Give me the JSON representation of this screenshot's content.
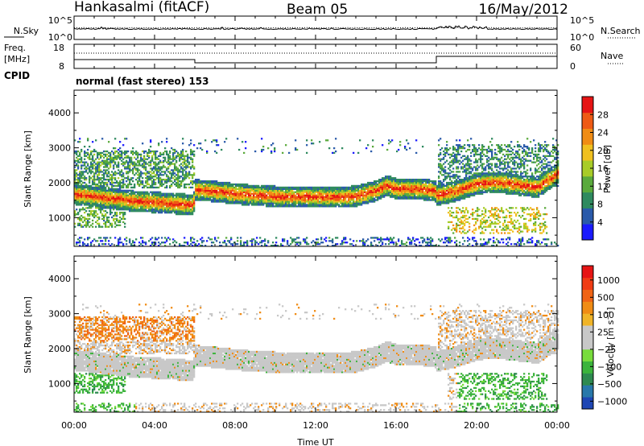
{
  "header": {
    "radar": "Hankasalmi (fitACF)",
    "beam": "Beam 05",
    "date": "16/May/2012"
  },
  "side_labels": {
    "nsky": "N.Sky",
    "nsearch": "N.Search",
    "freq": "Freq.",
    "freq_unit": "[MHz]",
    "nave": "Nave",
    "cpid": "CPID",
    "noise_hi": "10^5",
    "noise_lo": "10^0",
    "freq_hi": "18",
    "freq_lo": "8",
    "nave_hi": "60",
    "nave_lo": "0"
  },
  "cpid_text": "normal (fast stereo) 153",
  "chart_data": [
    {
      "type": "heatmap",
      "title": "Power",
      "xlabel": "Time UT",
      "ylabel": "Slant Range [km]",
      "xlim": [
        "00:00",
        "24:00"
      ],
      "ylim": [
        180,
        4650
      ],
      "x_ticks": [
        "00:00",
        "04:00",
        "08:00",
        "12:00",
        "16:00",
        "20:00",
        "00:00"
      ],
      "y_ticks": [
        1000,
        2000,
        3000,
        4000
      ],
      "colorbar": {
        "label": "Power [dB]",
        "ticks": [
          4,
          8,
          12,
          16,
          20,
          24,
          28
        ],
        "range": [
          0,
          32
        ],
        "colors": [
          "#1a1aff",
          "#2a5aaa",
          "#2f8a5f",
          "#5aaa3c",
          "#a8cc28",
          "#f0c020",
          "#f08c14",
          "#ee5a14",
          "#e61414"
        ]
      },
      "echo_band_center_km": [
        [
          0,
          1650
        ],
        [
          1,
          1580
        ],
        [
          2,
          1520
        ],
        [
          3,
          1450
        ],
        [
          4,
          1420
        ],
        [
          5,
          1380
        ],
        [
          5.9,
          1350
        ],
        [
          6,
          1780
        ],
        [
          7,
          1730
        ],
        [
          8,
          1660
        ],
        [
          9,
          1620
        ],
        [
          10,
          1590
        ],
        [
          11,
          1580
        ],
        [
          12,
          1570
        ],
        [
          13,
          1560
        ],
        [
          14,
          1600
        ],
        [
          15,
          1750
        ],
        [
          15.5,
          1900
        ],
        [
          16,
          1800
        ],
        [
          17,
          1800
        ],
        [
          17.9,
          1760
        ],
        [
          18,
          1620
        ],
        [
          19,
          1750
        ],
        [
          20,
          1950
        ],
        [
          21,
          2000
        ],
        [
          22,
          1920
        ],
        [
          23,
          1850
        ],
        [
          24,
          2250
        ]
      ]
    },
    {
      "type": "heatmap",
      "title": "Velocity",
      "xlabel": "Time UT",
      "ylabel": "Slant Range [km]",
      "xlim": [
        "00:00",
        "24:00"
      ],
      "ylim": [
        180,
        4650
      ],
      "x_ticks": [
        "00:00",
        "04:00",
        "08:00",
        "12:00",
        "16:00",
        "20:00",
        "00:00"
      ],
      "y_ticks": [
        1000,
        2000,
        3000,
        4000
      ],
      "colorbar": {
        "label": "Velocity [m s^-1]",
        "ticks": [
          "1000",
          "500",
          "100",
          "25",
          "−25",
          "−100",
          "−500",
          "−1000"
        ],
        "colors": [
          "#1e46b4",
          "#2878aa",
          "#2e8a50",
          "#3cb43c",
          "#78dc3c",
          "#c8c8c8",
          "#c8c8c8",
          "#f0b428",
          "#f08c14",
          "#f06414",
          "#f03c14",
          "#e61414"
        ]
      }
    }
  ]
}
